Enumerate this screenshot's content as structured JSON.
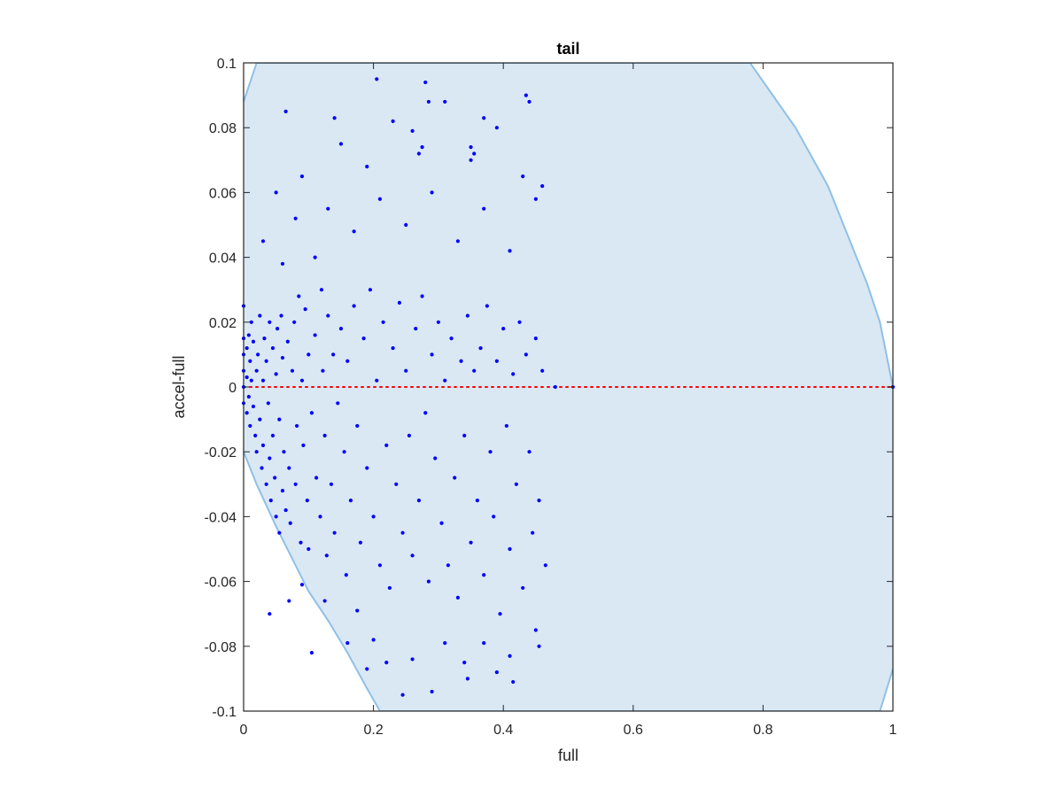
{
  "chart_data": {
    "type": "scatter",
    "title": "tail",
    "xlabel": "full",
    "ylabel": "accel-full",
    "xlim": [
      0,
      1
    ],
    "ylim": [
      -0.1,
      0.1
    ],
    "xticks": [
      0,
      0.2,
      0.4,
      0.6,
      0.8,
      1
    ],
    "xtick_labels": [
      "0",
      "0.2",
      "0.4",
      "0.6",
      "0.8",
      "1"
    ],
    "yticks": [
      -0.1,
      -0.08,
      -0.06,
      -0.04,
      -0.02,
      0,
      0.02,
      0.04,
      0.06,
      0.08,
      0.1
    ],
    "ytick_labels": [
      "-0.1",
      "-0.08",
      "-0.06",
      "-0.04",
      "-0.02",
      "0",
      "0.02",
      "0.04",
      "0.06",
      "0.08",
      "0.1"
    ],
    "grid": false,
    "region": {
      "description": "shaded circular region",
      "fill_color": "#dae8f4",
      "edge_color": "#8fc0e6",
      "upper_boundary": [
        [
          0,
          0.088
        ],
        [
          0.02,
          0.1
        ],
        [
          0.78,
          0.1
        ],
        [
          0.85,
          0.08
        ],
        [
          0.9,
          0.062
        ],
        [
          0.93,
          0.047
        ],
        [
          0.96,
          0.032
        ],
        [
          0.98,
          0.02
        ],
        [
          1.0,
          0.0
        ]
      ],
      "lower_boundary": [
        [
          0,
          -0.02
        ],
        [
          0.02,
          -0.03
        ],
        [
          0.05,
          -0.043
        ],
        [
          0.08,
          -0.055
        ],
        [
          0.1,
          -0.063
        ],
        [
          0.13,
          -0.072
        ],
        [
          0.16,
          -0.082
        ],
        [
          0.19,
          -0.093
        ],
        [
          0.21,
          -0.1
        ],
        [
          0.98,
          -0.1
        ],
        [
          1.0,
          -0.087
        ]
      ]
    },
    "reference_line": {
      "y": 0,
      "style": "dotted",
      "color": "#ff0000"
    },
    "series": [
      {
        "color": "#0000ff",
        "points": [
          [
            0.0,
            0.025
          ],
          [
            0.0,
            0.015
          ],
          [
            0.0,
            0.01
          ],
          [
            0.0,
            0.005
          ],
          [
            0.0,
            0.0
          ],
          [
            0.0,
            -0.005
          ],
          [
            0.005,
            0.012
          ],
          [
            0.005,
            0.003
          ],
          [
            0.005,
            -0.008
          ],
          [
            0.008,
            0.016
          ],
          [
            0.008,
            -0.003
          ],
          [
            0.01,
            0.008
          ],
          [
            0.01,
            -0.012
          ],
          [
            0.012,
            0.02
          ],
          [
            0.012,
            0.002
          ],
          [
            0.015,
            -0.006
          ],
          [
            0.015,
            0.014
          ],
          [
            0.018,
            -0.015
          ],
          [
            0.02,
            0.005
          ],
          [
            0.02,
            -0.02
          ],
          [
            0.022,
            0.01
          ],
          [
            0.025,
            -0.01
          ],
          [
            0.025,
            0.022
          ],
          [
            0.028,
            -0.025
          ],
          [
            0.03,
            0.002
          ],
          [
            0.03,
            -0.018
          ],
          [
            0.032,
            0.015
          ],
          [
            0.035,
            -0.03
          ],
          [
            0.035,
            0.008
          ],
          [
            0.038,
            -0.005
          ],
          [
            0.04,
            -0.022
          ],
          [
            0.04,
            0.02
          ],
          [
            0.042,
            -0.035
          ],
          [
            0.045,
            0.012
          ],
          [
            0.045,
            -0.015
          ],
          [
            0.048,
            -0.028
          ],
          [
            0.05,
            0.004
          ],
          [
            0.05,
            -0.04
          ],
          [
            0.052,
            0.018
          ],
          [
            0.055,
            -0.045
          ],
          [
            0.055,
            -0.01
          ],
          [
            0.058,
            0.022
          ],
          [
            0.06,
            -0.032
          ],
          [
            0.06,
            0.009
          ],
          [
            0.062,
            -0.02
          ],
          [
            0.065,
            -0.038
          ],
          [
            0.068,
            0.014
          ],
          [
            0.07,
            -0.025
          ],
          [
            0.072,
            -0.042
          ],
          [
            0.075,
            0.005
          ],
          [
            0.078,
            0.02
          ],
          [
            0.08,
            -0.03
          ],
          [
            0.082,
            -0.012
          ],
          [
            0.085,
            0.028
          ],
          [
            0.088,
            -0.048
          ],
          [
            0.09,
            0.002
          ],
          [
            0.092,
            -0.018
          ],
          [
            0.095,
            0.024
          ],
          [
            0.098,
            -0.035
          ],
          [
            0.1,
            0.01
          ],
          [
            0.1,
            -0.05
          ],
          [
            0.105,
            -0.008
          ],
          [
            0.11,
            0.016
          ],
          [
            0.112,
            -0.028
          ],
          [
            0.118,
            -0.04
          ],
          [
            0.12,
            0.03
          ],
          [
            0.122,
            0.005
          ],
          [
            0.125,
            -0.015
          ],
          [
            0.128,
            -0.052
          ],
          [
            0.13,
            0.022
          ],
          [
            0.135,
            -0.03
          ],
          [
            0.138,
            0.01
          ],
          [
            0.14,
            -0.045
          ],
          [
            0.145,
            -0.005
          ],
          [
            0.15,
            0.018
          ],
          [
            0.155,
            -0.02
          ],
          [
            0.158,
            -0.058
          ],
          [
            0.16,
            0.008
          ],
          [
            0.165,
            -0.035
          ],
          [
            0.17,
            0.025
          ],
          [
            0.175,
            -0.012
          ],
          [
            0.18,
            -0.048
          ],
          [
            0.185,
            0.015
          ],
          [
            0.19,
            -0.025
          ],
          [
            0.195,
            0.03
          ],
          [
            0.2,
            -0.04
          ],
          [
            0.205,
            0.002
          ],
          [
            0.21,
            -0.055
          ],
          [
            0.215,
            0.02
          ],
          [
            0.22,
            -0.018
          ],
          [
            0.225,
            -0.062
          ],
          [
            0.23,
            0.012
          ],
          [
            0.235,
            -0.03
          ],
          [
            0.24,
            0.026
          ],
          [
            0.245,
            -0.045
          ],
          [
            0.25,
            0.005
          ],
          [
            0.255,
            -0.015
          ],
          [
            0.26,
            -0.052
          ],
          [
            0.265,
            0.018
          ],
          [
            0.27,
            -0.035
          ],
          [
            0.275,
            0.028
          ],
          [
            0.28,
            -0.008
          ],
          [
            0.285,
            -0.06
          ],
          [
            0.29,
            0.01
          ],
          [
            0.295,
            -0.022
          ],
          [
            0.3,
            0.02
          ],
          [
            0.305,
            -0.042
          ],
          [
            0.31,
            0.002
          ],
          [
            0.315,
            -0.055
          ],
          [
            0.32,
            0.015
          ],
          [
            0.325,
            -0.028
          ],
          [
            0.33,
            -0.065
          ],
          [
            0.335,
            0.008
          ],
          [
            0.34,
            -0.015
          ],
          [
            0.345,
            0.022
          ],
          [
            0.35,
            -0.048
          ],
          [
            0.355,
            0.005
          ],
          [
            0.36,
            -0.035
          ],
          [
            0.365,
            0.012
          ],
          [
            0.37,
            -0.058
          ],
          [
            0.375,
            0.025
          ],
          [
            0.38,
            -0.02
          ],
          [
            0.385,
            -0.04
          ],
          [
            0.39,
            0.008
          ],
          [
            0.395,
            -0.07
          ],
          [
            0.4,
            0.018
          ],
          [
            0.405,
            -0.012
          ],
          [
            0.41,
            -0.05
          ],
          [
            0.415,
            0.004
          ],
          [
            0.42,
            -0.03
          ],
          [
            0.425,
            0.02
          ],
          [
            0.43,
            -0.062
          ],
          [
            0.435,
            0.01
          ],
          [
            0.44,
            -0.02
          ],
          [
            0.445,
            -0.045
          ],
          [
            0.45,
            0.015
          ],
          [
            0.455,
            -0.035
          ],
          [
            0.46,
            0.005
          ],
          [
            0.465,
            -0.055
          ],
          [
            0.03,
            0.045
          ],
          [
            0.05,
            0.06
          ],
          [
            0.06,
            0.038
          ],
          [
            0.08,
            0.052
          ],
          [
            0.09,
            0.065
          ],
          [
            0.11,
            0.04
          ],
          [
            0.13,
            0.055
          ],
          [
            0.15,
            0.075
          ],
          [
            0.17,
            0.048
          ],
          [
            0.19,
            0.068
          ],
          [
            0.21,
            0.058
          ],
          [
            0.23,
            0.082
          ],
          [
            0.25,
            0.05
          ],
          [
            0.27,
            0.072
          ],
          [
            0.29,
            0.06
          ],
          [
            0.31,
            0.088
          ],
          [
            0.33,
            0.045
          ],
          [
            0.35,
            0.07
          ],
          [
            0.37,
            0.055
          ],
          [
            0.39,
            0.08
          ],
          [
            0.41,
            0.042
          ],
          [
            0.43,
            0.065
          ],
          [
            0.45,
            0.058
          ],
          [
            0.46,
            0.062
          ],
          [
            0.065,
            0.085
          ],
          [
            0.14,
            0.083
          ],
          [
            0.205,
            0.095
          ],
          [
            0.28,
            0.094
          ],
          [
            0.285,
            0.088
          ],
          [
            0.37,
            0.083
          ],
          [
            0.435,
            0.09
          ],
          [
            0.44,
            0.088
          ],
          [
            0.35,
            0.074
          ],
          [
            0.355,
            0.072
          ],
          [
            0.26,
            0.079
          ],
          [
            0.275,
            0.074
          ],
          [
            0.48,
            0.0
          ],
          [
            0.04,
            -0.07
          ],
          [
            0.07,
            -0.066
          ],
          [
            0.09,
            -0.061
          ],
          [
            0.105,
            -0.082
          ],
          [
            0.125,
            -0.066
          ],
          [
            0.16,
            -0.079
          ],
          [
            0.175,
            -0.069
          ],
          [
            0.19,
            -0.087
          ],
          [
            0.2,
            -0.078
          ],
          [
            0.22,
            -0.085
          ],
          [
            0.245,
            -0.095
          ],
          [
            0.26,
            -0.084
          ],
          [
            0.29,
            -0.094
          ],
          [
            0.31,
            -0.079
          ],
          [
            0.34,
            -0.085
          ],
          [
            0.345,
            -0.09
          ],
          [
            0.37,
            -0.079
          ],
          [
            0.39,
            -0.088
          ],
          [
            0.41,
            -0.083
          ],
          [
            0.415,
            -0.091
          ],
          [
            0.45,
            -0.075
          ],
          [
            0.455,
            -0.08
          ],
          [
            1.0,
            0.0
          ]
        ]
      }
    ]
  }
}
